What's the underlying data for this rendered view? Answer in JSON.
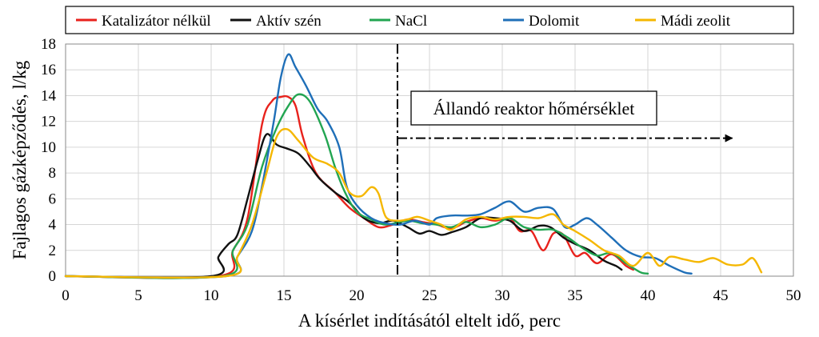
{
  "chart_data": {
    "type": "line",
    "title": "",
    "xlabel": "A kísérlet indításától eltelt idő, perc",
    "ylabel": "Fajlagos gázképződés, l/kg",
    "xlim": [
      0,
      50
    ],
    "ylim": [
      0,
      18
    ],
    "x_ticks": [
      "0",
      "5",
      "10",
      "15",
      "20",
      "25",
      "30",
      "35",
      "40",
      "45",
      "50"
    ],
    "y_ticks": [
      "0",
      "2",
      "4",
      "6",
      "8",
      "10",
      "12",
      "14",
      "16",
      "18"
    ],
    "grid": true,
    "legend_position": "top",
    "series": [
      {
        "name": "Katalizátor nélkül",
        "color": "#e8221c",
        "points": [
          [
            0,
            0
          ],
          [
            10.5,
            0
          ],
          [
            11.5,
            2
          ],
          [
            12.5,
            4.5
          ],
          [
            13.5,
            11.8
          ],
          [
            14.2,
            13.6
          ],
          [
            14.8,
            13.9
          ],
          [
            15.3,
            13.9
          ],
          [
            15.8,
            13.2
          ],
          [
            16.3,
            10.8
          ],
          [
            17.2,
            8
          ],
          [
            18.5,
            6.5
          ],
          [
            19.5,
            5.3
          ],
          [
            20.5,
            4.5
          ],
          [
            21.5,
            3.8
          ],
          [
            22.5,
            4
          ],
          [
            23.5,
            4.4
          ],
          [
            24.5,
            4.2
          ],
          [
            25.5,
            4
          ],
          [
            26.5,
            3.7
          ],
          [
            27.5,
            4.2
          ],
          [
            28.5,
            4.5
          ],
          [
            29.5,
            4.3
          ],
          [
            30.5,
            4.5
          ],
          [
            31.2,
            3.5
          ],
          [
            32,
            3.5
          ],
          [
            32.8,
            2
          ],
          [
            33.5,
            3.3
          ],
          [
            34.2,
            3.2
          ],
          [
            35,
            1.6
          ],
          [
            35.7,
            1.8
          ],
          [
            36.5,
            1
          ],
          [
            37.5,
            1.7
          ],
          [
            38.5,
            0.8
          ],
          [
            39,
            0.5
          ]
        ]
      },
      {
        "name": "Aktív szén",
        "color": "#111111",
        "points": [
          [
            0,
            0
          ],
          [
            10,
            0
          ],
          [
            10.5,
            1.5
          ],
          [
            11.2,
            2.5
          ],
          [
            11.8,
            3.2
          ],
          [
            12.5,
            6
          ],
          [
            13.2,
            9
          ],
          [
            13.8,
            11
          ],
          [
            14.5,
            10.2
          ],
          [
            15.2,
            9.9
          ],
          [
            16,
            9.5
          ],
          [
            16.8,
            8.5
          ],
          [
            17.5,
            7.5
          ],
          [
            18.5,
            6.5
          ],
          [
            19.5,
            5.7
          ],
          [
            20.5,
            4.5
          ],
          [
            21.5,
            4.1
          ],
          [
            22.5,
            4.3
          ],
          [
            23.5,
            3.8
          ],
          [
            24.3,
            3.3
          ],
          [
            25,
            3.5
          ],
          [
            25.8,
            3.2
          ],
          [
            26.5,
            3.4
          ],
          [
            27.5,
            3.8
          ],
          [
            28.5,
            4.5
          ],
          [
            29.5,
            4.5
          ],
          [
            30.5,
            4.3
          ],
          [
            31.5,
            3.5
          ],
          [
            32.5,
            3.9
          ],
          [
            33.3,
            3.8
          ],
          [
            34.2,
            3
          ],
          [
            35,
            2.5
          ],
          [
            36,
            2
          ],
          [
            37,
            1.2
          ],
          [
            37.8,
            0.8
          ],
          [
            38.2,
            0.5
          ]
        ]
      },
      {
        "name": "NaCl",
        "color": "#22a551",
        "points": [
          [
            0,
            0
          ],
          [
            10.8,
            0
          ],
          [
            11.5,
            2
          ],
          [
            12.5,
            4
          ],
          [
            13.5,
            8.5
          ],
          [
            14.5,
            11.5
          ],
          [
            15.3,
            13.2
          ],
          [
            16,
            14.1
          ],
          [
            16.8,
            13.5
          ],
          [
            17.8,
            11
          ],
          [
            18.5,
            8.5
          ],
          [
            19.2,
            6.5
          ],
          [
            20,
            5
          ],
          [
            21,
            4.4
          ],
          [
            22,
            4
          ],
          [
            23.5,
            4.3
          ],
          [
            24.5,
            4.1
          ],
          [
            25.5,
            4
          ],
          [
            26.5,
            3.8
          ],
          [
            27.5,
            4.2
          ],
          [
            28.5,
            3.8
          ],
          [
            29.5,
            4
          ],
          [
            30.5,
            4.5
          ],
          [
            31.5,
            3.8
          ],
          [
            32.5,
            3.6
          ],
          [
            33.5,
            3.6
          ],
          [
            34.5,
            3
          ],
          [
            35.5,
            2.2
          ],
          [
            36.5,
            1.6
          ],
          [
            37.5,
            1.8
          ],
          [
            38.5,
            1
          ],
          [
            39.5,
            0.3
          ],
          [
            40,
            0.2
          ]
        ]
      },
      {
        "name": "Dolomit",
        "color": "#1f6fb8",
        "points": [
          [
            0,
            0
          ],
          [
            11,
            0
          ],
          [
            11.8,
            1.5
          ],
          [
            12.8,
            3.5
          ],
          [
            13.5,
            7
          ],
          [
            14.3,
            12
          ],
          [
            14.8,
            15.5
          ],
          [
            15.3,
            17.2
          ],
          [
            15.8,
            16.2
          ],
          [
            16.5,
            14.8
          ],
          [
            17.3,
            13
          ],
          [
            18,
            12
          ],
          [
            18.8,
            10
          ],
          [
            19.3,
            7
          ],
          [
            20,
            5.5
          ],
          [
            21,
            4.5
          ],
          [
            22,
            4.1
          ],
          [
            23,
            4
          ],
          [
            24,
            4.3
          ],
          [
            25,
            4
          ],
          [
            25.5,
            4.5
          ],
          [
            26.5,
            4.7
          ],
          [
            27.5,
            4.7
          ],
          [
            28.5,
            4.8
          ],
          [
            29.5,
            5.3
          ],
          [
            30.5,
            5.8
          ],
          [
            31.5,
            5
          ],
          [
            32.5,
            5.3
          ],
          [
            33.5,
            5.2
          ],
          [
            34.3,
            3.8
          ],
          [
            35,
            4
          ],
          [
            35.8,
            4.5
          ],
          [
            36.5,
            4
          ],
          [
            37.5,
            3
          ],
          [
            38.5,
            2
          ],
          [
            39.5,
            1.5
          ],
          [
            40.5,
            1.4
          ],
          [
            41.5,
            0.8
          ],
          [
            42.5,
            0.3
          ],
          [
            43,
            0.2
          ]
        ]
      },
      {
        "name": "Mádi zeolit",
        "color": "#f5b700",
        "points": [
          [
            0,
            0
          ],
          [
            11,
            0
          ],
          [
            11.8,
            1.5
          ],
          [
            12.8,
            4
          ],
          [
            13.8,
            8
          ],
          [
            14.5,
            10.8
          ],
          [
            15.2,
            11.4
          ],
          [
            16,
            10.5
          ],
          [
            17,
            9.2
          ],
          [
            18,
            8.7
          ],
          [
            18.8,
            8
          ],
          [
            19.5,
            6.5
          ],
          [
            20.3,
            6.2
          ],
          [
            21,
            6.9
          ],
          [
            21.5,
            6.4
          ],
          [
            22,
            4.6
          ],
          [
            22.8,
            4.3
          ],
          [
            23.5,
            4.4
          ],
          [
            24.2,
            4.6
          ],
          [
            25,
            4.3
          ],
          [
            25.8,
            4
          ],
          [
            26.5,
            3.6
          ],
          [
            27.5,
            4.4
          ],
          [
            28.5,
            4.6
          ],
          [
            29.5,
            4.4
          ],
          [
            30.5,
            4.6
          ],
          [
            31.5,
            4.6
          ],
          [
            32.5,
            4.5
          ],
          [
            33.5,
            4.8
          ],
          [
            34.2,
            4
          ],
          [
            35,
            3.5
          ],
          [
            36,
            2.8
          ],
          [
            37,
            2
          ],
          [
            38,
            1.6
          ],
          [
            39,
            0.8
          ],
          [
            40,
            1.8
          ],
          [
            40.8,
            0.8
          ],
          [
            41.5,
            1.5
          ],
          [
            42.5,
            1.3
          ],
          [
            43.5,
            1.1
          ],
          [
            44.5,
            1.4
          ],
          [
            45.5,
            0.9
          ],
          [
            46.5,
            0.9
          ],
          [
            47.2,
            1.4
          ],
          [
            47.8,
            0.3
          ]
        ]
      }
    ],
    "annotations": {
      "vertical_line_x": 22.8,
      "arrow_y": 10.7,
      "arrow_x_end": 45.8,
      "label": "Állandó reaktor hőmérséklet"
    }
  }
}
